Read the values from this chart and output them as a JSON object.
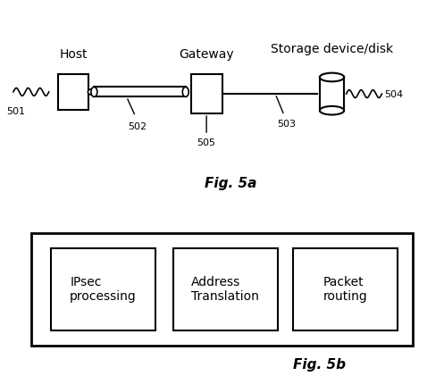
{
  "fig_width": 4.97,
  "fig_height": 4.21,
  "bg_color": "#ffffff",
  "top_diagram": {
    "host_label": "Host",
    "gateway_label": "Gateway",
    "storage_label": "Storage device/disk",
    "labels_502": "502",
    "labels_503": "503",
    "labels_504": "504",
    "labels_505": "505",
    "labels_501": "501",
    "fig_label": "Fig. 5a"
  },
  "bottom_diagram": {
    "outer_box": true,
    "boxes": [
      "IPsec\nprocessing",
      "Address\nTranslation",
      "Packet\nrouting"
    ],
    "fig_label": "Fig. 5b"
  }
}
